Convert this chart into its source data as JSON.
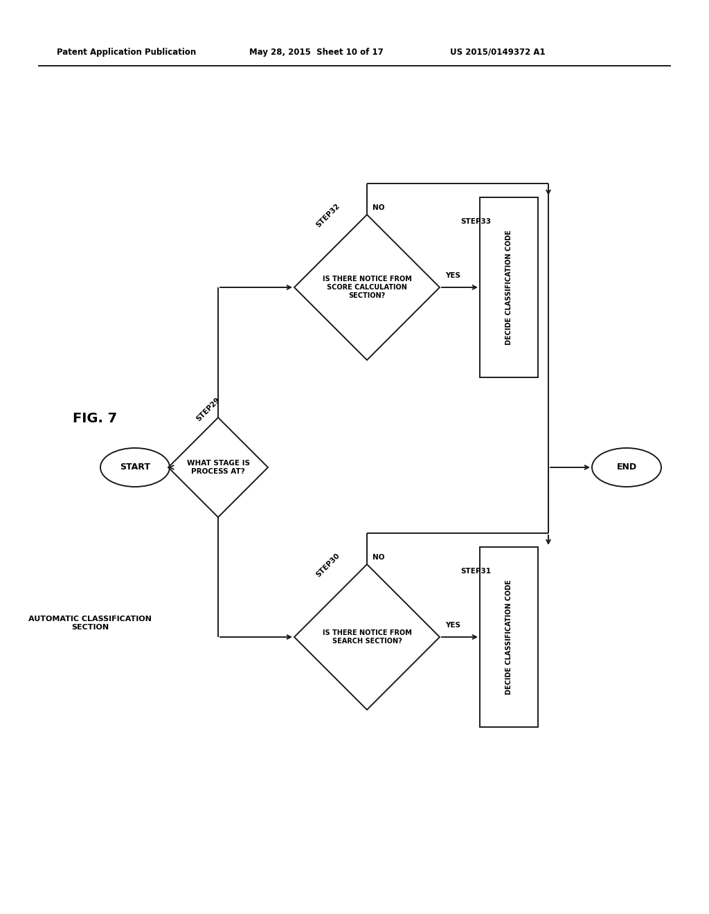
{
  "bg_color": "#ffffff",
  "line_color": "#1a1a1a",
  "header_left": "Patent Application Publication",
  "header_mid": "May 28, 2015  Sheet 10 of 17",
  "header_right": "US 2015/0149372 A1",
  "fig_label": "FIG. 7",
  "lw": 1.4
}
